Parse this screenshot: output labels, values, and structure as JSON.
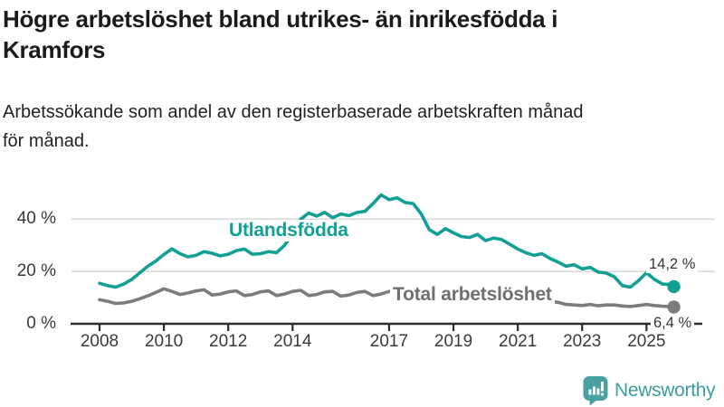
{
  "header": {
    "title_lines": [
      "Högre arbetslöshet bland utrikes- än inrikesfödda i",
      "Kramfors"
    ],
    "subtitle_lines": [
      "Arbetssökande som andel av den registerbaserade arbetskraften månad",
      "för månad."
    ]
  },
  "chart_data": {
    "type": "line",
    "title": "Högre arbetslöshet bland utrikes- än inrikesfödda i Kramfors",
    "subtitle": "Arbetssökande som andel av den registerbaserade arbetskraften månad för månad.",
    "unit": "%",
    "grid": "horizontal",
    "legend_position": "inline-labels",
    "xlim": [
      2007.9,
      2026.3
    ],
    "ylim": [
      0,
      52
    ],
    "x": [
      2008,
      2008.25,
      2008.5,
      2008.75,
      2009,
      2009.25,
      2009.5,
      2009.75,
      2010,
      2010.25,
      2010.5,
      2010.75,
      2011,
      2011.25,
      2011.5,
      2011.75,
      2012,
      2012.25,
      2012.5,
      2012.75,
      2013,
      2013.25,
      2013.5,
      2013.75,
      2014,
      2014.25,
      2014.5,
      2014.75,
      2015,
      2015.25,
      2015.5,
      2015.75,
      2016,
      2016.25,
      2016.5,
      2016.75,
      2017,
      2017.25,
      2017.5,
      2017.75,
      2018,
      2018.25,
      2018.5,
      2018.75,
      2019,
      2019.25,
      2019.5,
      2019.75,
      2020,
      2020.25,
      2020.5,
      2020.75,
      2021,
      2021.25,
      2021.5,
      2021.75,
      2022,
      2022.25,
      2022.5,
      2022.75,
      2023,
      2023.25,
      2023.5,
      2023.75,
      2024,
      2024.25,
      2024.5,
      2024.75,
      2025,
      2025.25,
      2025.5,
      2025.75,
      2025.85
    ],
    "series": [
      {
        "name": "Utlandsfödda",
        "color": "#12A095",
        "end_label": "14,2 %",
        "end_value": 14.2,
        "values": [
          15.5,
          14.6,
          14.0,
          15.2,
          17.0,
          19.5,
          22.0,
          24.0,
          26.5,
          28.7,
          26.8,
          25.6,
          26.2,
          27.6,
          27.0,
          26.0,
          26.6,
          28.0,
          28.6,
          26.6,
          26.8,
          27.6,
          27.2,
          30.0,
          34.5,
          40.0,
          42.4,
          41.2,
          42.6,
          40.6,
          42.0,
          41.4,
          42.6,
          43.0,
          46.0,
          49.3,
          47.5,
          48.2,
          46.4,
          46.0,
          42.0,
          36.0,
          34.2,
          36.4,
          34.8,
          33.4,
          33.0,
          34.2,
          31.8,
          32.8,
          32.2,
          30.4,
          28.6,
          27.2,
          26.2,
          26.8,
          25.0,
          23.6,
          22.0,
          22.6,
          21.0,
          21.6,
          19.8,
          19.4,
          18.0,
          14.6,
          14.0,
          16.5,
          19.5,
          17.0,
          15.2,
          15.0,
          14.2
        ]
      },
      {
        "name": "Total arbetslöshet",
        "color": "#7C7C7C",
        "end_label": "6,4 %",
        "end_value": 6.4,
        "values": [
          9.2,
          8.6,
          7.8,
          8.0,
          8.6,
          9.6,
          10.7,
          12.0,
          13.4,
          12.4,
          11.2,
          11.8,
          12.6,
          13.0,
          11.0,
          11.4,
          12.2,
          12.6,
          10.8,
          11.2,
          12.2,
          12.6,
          10.8,
          11.4,
          12.4,
          12.8,
          10.8,
          11.2,
          12.2,
          12.4,
          10.6,
          11.0,
          12.0,
          12.4,
          10.8,
          11.4,
          12.4,
          12.0,
          11.0,
          11.2,
          11.8,
          11.4,
          10.4,
          10.6,
          11.0,
          10.6,
          9.8,
          10.0,
          10.0,
          10.6,
          10.2,
          9.6,
          9.6,
          9.2,
          8.6,
          8.6,
          8.6,
          8.2,
          7.4,
          7.2,
          7.0,
          7.4,
          6.9,
          7.2,
          7.2,
          6.8,
          6.6,
          7.0,
          7.4,
          7.0,
          6.7,
          6.6,
          6.4
        ]
      }
    ],
    "xticks": {
      "years": [
        2008,
        2010,
        2012,
        2014,
        2017,
        2019,
        2021,
        2023,
        2025
      ],
      "labels": [
        "2008",
        "2010",
        "2012",
        "2014",
        "2017",
        "2019",
        "2021",
        "2023",
        "2025"
      ]
    },
    "yticks": {
      "values": [
        0,
        20,
        40
      ],
      "labels": [
        "0 %",
        "20 %",
        "40 %"
      ]
    }
  },
  "footer": {
    "brand": "Newsworthy"
  },
  "colors": {
    "teal": "#12A095",
    "gray": "#7C7C7C",
    "grid": "#D9D9D9",
    "axis": "#2D2D2D",
    "logo_teal": "#4AA2A0",
    "brand_text": "#3E9D9F"
  }
}
